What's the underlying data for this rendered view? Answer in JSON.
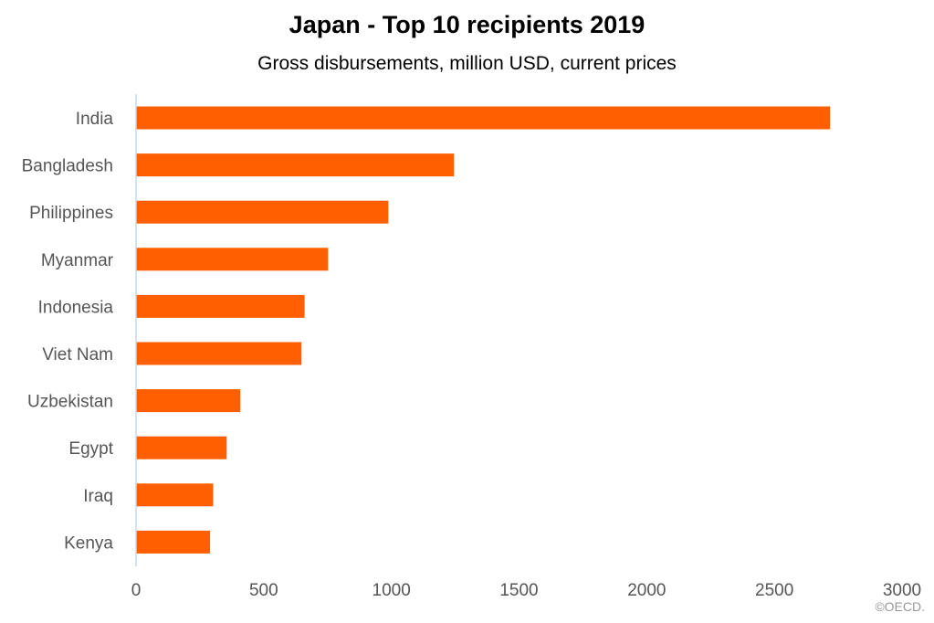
{
  "chart_data": {
    "type": "bar",
    "orientation": "horizontal",
    "title": "Japan - Top 10 recipients 2019",
    "subtitle": "Gross disbursements, million USD, current prices",
    "categories": [
      "India",
      "Bangladesh",
      "Philippines",
      "Myanmar",
      "Indonesia",
      "Viet Nam",
      "Uzbekistan",
      "Egypt",
      "Iraq",
      "Kenya"
    ],
    "values": [
      2718,
      1245,
      988,
      752,
      660,
      648,
      408,
      355,
      302,
      290
    ],
    "xlim": [
      0,
      3000
    ],
    "xticks": [
      0,
      500,
      1000,
      1500,
      2000,
      2500,
      3000
    ],
    "grid": false,
    "legend": "none",
    "bar_color": "#FF5F00",
    "axis_color": "#C8D8EC"
  },
  "credit": "©OECD."
}
